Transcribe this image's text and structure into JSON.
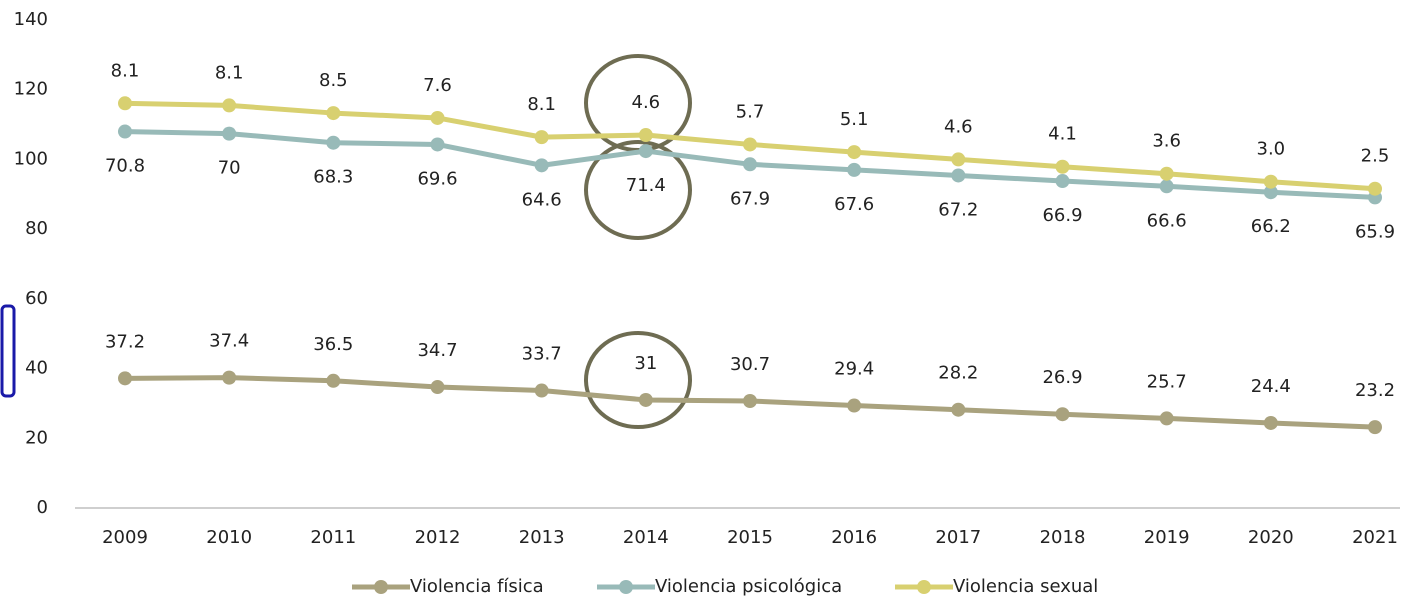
{
  "chart_data": {
    "type": "line",
    "stacked": true,
    "categories": [
      "2009",
      "2010",
      "2011",
      "2012",
      "2013",
      "2014",
      "2015",
      "2016",
      "2017",
      "2018",
      "2019",
      "2020",
      "2021"
    ],
    "series": [
      {
        "name": "Violencia física",
        "color": "#a9a27e",
        "values": [
          37.2,
          37.4,
          36.5,
          34.7,
          33.7,
          31,
          30.7,
          29.4,
          28.2,
          26.9,
          25.7,
          24.4,
          23.2
        ]
      },
      {
        "name": "Violencia psicológica",
        "color": "#98bab8",
        "values": [
          70.8,
          70,
          68.3,
          69.6,
          64.6,
          71.4,
          67.9,
          67.6,
          67.2,
          66.9,
          66.6,
          66.2,
          65.9
        ]
      },
      {
        "name": "Violencia sexual",
        "color": "#d8d070",
        "values": [
          8.1,
          8.1,
          8.5,
          7.6,
          8.1,
          4.6,
          5.7,
          5.1,
          4.6,
          4.1,
          3.6,
          3,
          2.5
        ],
        "value_labels": [
          "8.1",
          "8.1",
          "8.5",
          "7.6",
          "8.1",
          "4.6",
          "5.7",
          "5.1",
          "4.6",
          "4.1",
          "3.6",
          "3.0",
          "2.5"
        ]
      }
    ],
    "ylim": [
      0,
      140
    ],
    "yticks": [
      0,
      20,
      40,
      60,
      80,
      100,
      120,
      140
    ],
    "grid": false,
    "legend": "bottom"
  }
}
